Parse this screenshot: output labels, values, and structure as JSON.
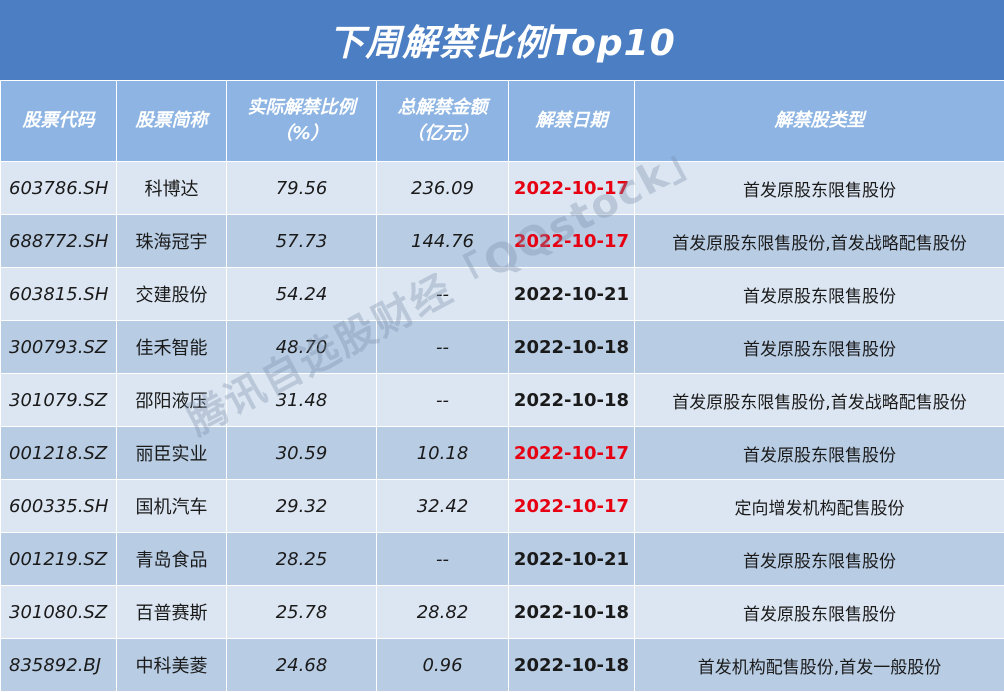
{
  "title": "下周解禁比例Top10",
  "headers": {
    "code": "股票代码",
    "name": "股票简称",
    "ratio_line1": "实际解禁比例",
    "ratio_line2": "（%）",
    "amount_line1": "总解禁金额",
    "amount_line2": "（亿元）",
    "date": "解禁日期",
    "type": "解禁股类型"
  },
  "rows": [
    {
      "code": "603786.SH",
      "name": "科博达",
      "ratio": "79.56",
      "amount": "236.09",
      "date": "2022-10-17",
      "date_highlight": true,
      "type": "首发原股东限售股份"
    },
    {
      "code": "688772.SH",
      "name": "珠海冠宇",
      "ratio": "57.73",
      "amount": "144.76",
      "date": "2022-10-17",
      "date_highlight": true,
      "type": "首发原股东限售股份,首发战略配售股份"
    },
    {
      "code": "603815.SH",
      "name": "交建股份",
      "ratio": "54.24",
      "amount": "--",
      "date": "2022-10-21",
      "date_highlight": false,
      "type": "首发原股东限售股份"
    },
    {
      "code": "300793.SZ",
      "name": "佳禾智能",
      "ratio": "48.70",
      "amount": "--",
      "date": "2022-10-18",
      "date_highlight": false,
      "type": "首发原股东限售股份"
    },
    {
      "code": "301079.SZ",
      "name": "邵阳液压",
      "ratio": "31.48",
      "amount": "--",
      "date": "2022-10-18",
      "date_highlight": false,
      "type": "首发原股东限售股份,首发战略配售股份"
    },
    {
      "code": "001218.SZ",
      "name": "丽臣实业",
      "ratio": "30.59",
      "amount": "10.18",
      "date": "2022-10-17",
      "date_highlight": true,
      "type": "首发原股东限售股份"
    },
    {
      "code": "600335.SH",
      "name": "国机汽车",
      "ratio": "29.32",
      "amount": "32.42",
      "date": "2022-10-17",
      "date_highlight": true,
      "type": "定向增发机构配售股份"
    },
    {
      "code": "001219.SZ",
      "name": "青岛食品",
      "ratio": "28.25",
      "amount": "--",
      "date": "2022-10-21",
      "date_highlight": false,
      "type": "首发原股东限售股份"
    },
    {
      "code": "301080.SZ",
      "name": "百普赛斯",
      "ratio": "25.78",
      "amount": "28.82",
      "date": "2022-10-18",
      "date_highlight": false,
      "type": "首发原股东限售股份"
    },
    {
      "code": "835892.BJ",
      "name": "中科美菱",
      "ratio": "24.68",
      "amount": "0.96",
      "date": "2022-10-18",
      "date_highlight": false,
      "type": "首发机构配售股份,首发一般股份"
    }
  ],
  "watermark": "腾讯自选股财经「QQstock」",
  "colors": {
    "title_bg": "#4b7ec2",
    "header_bg": "#8db4e2",
    "row_light": "#dce6f2",
    "row_dark": "#b8cce4",
    "date_highlight": "#e60012"
  }
}
